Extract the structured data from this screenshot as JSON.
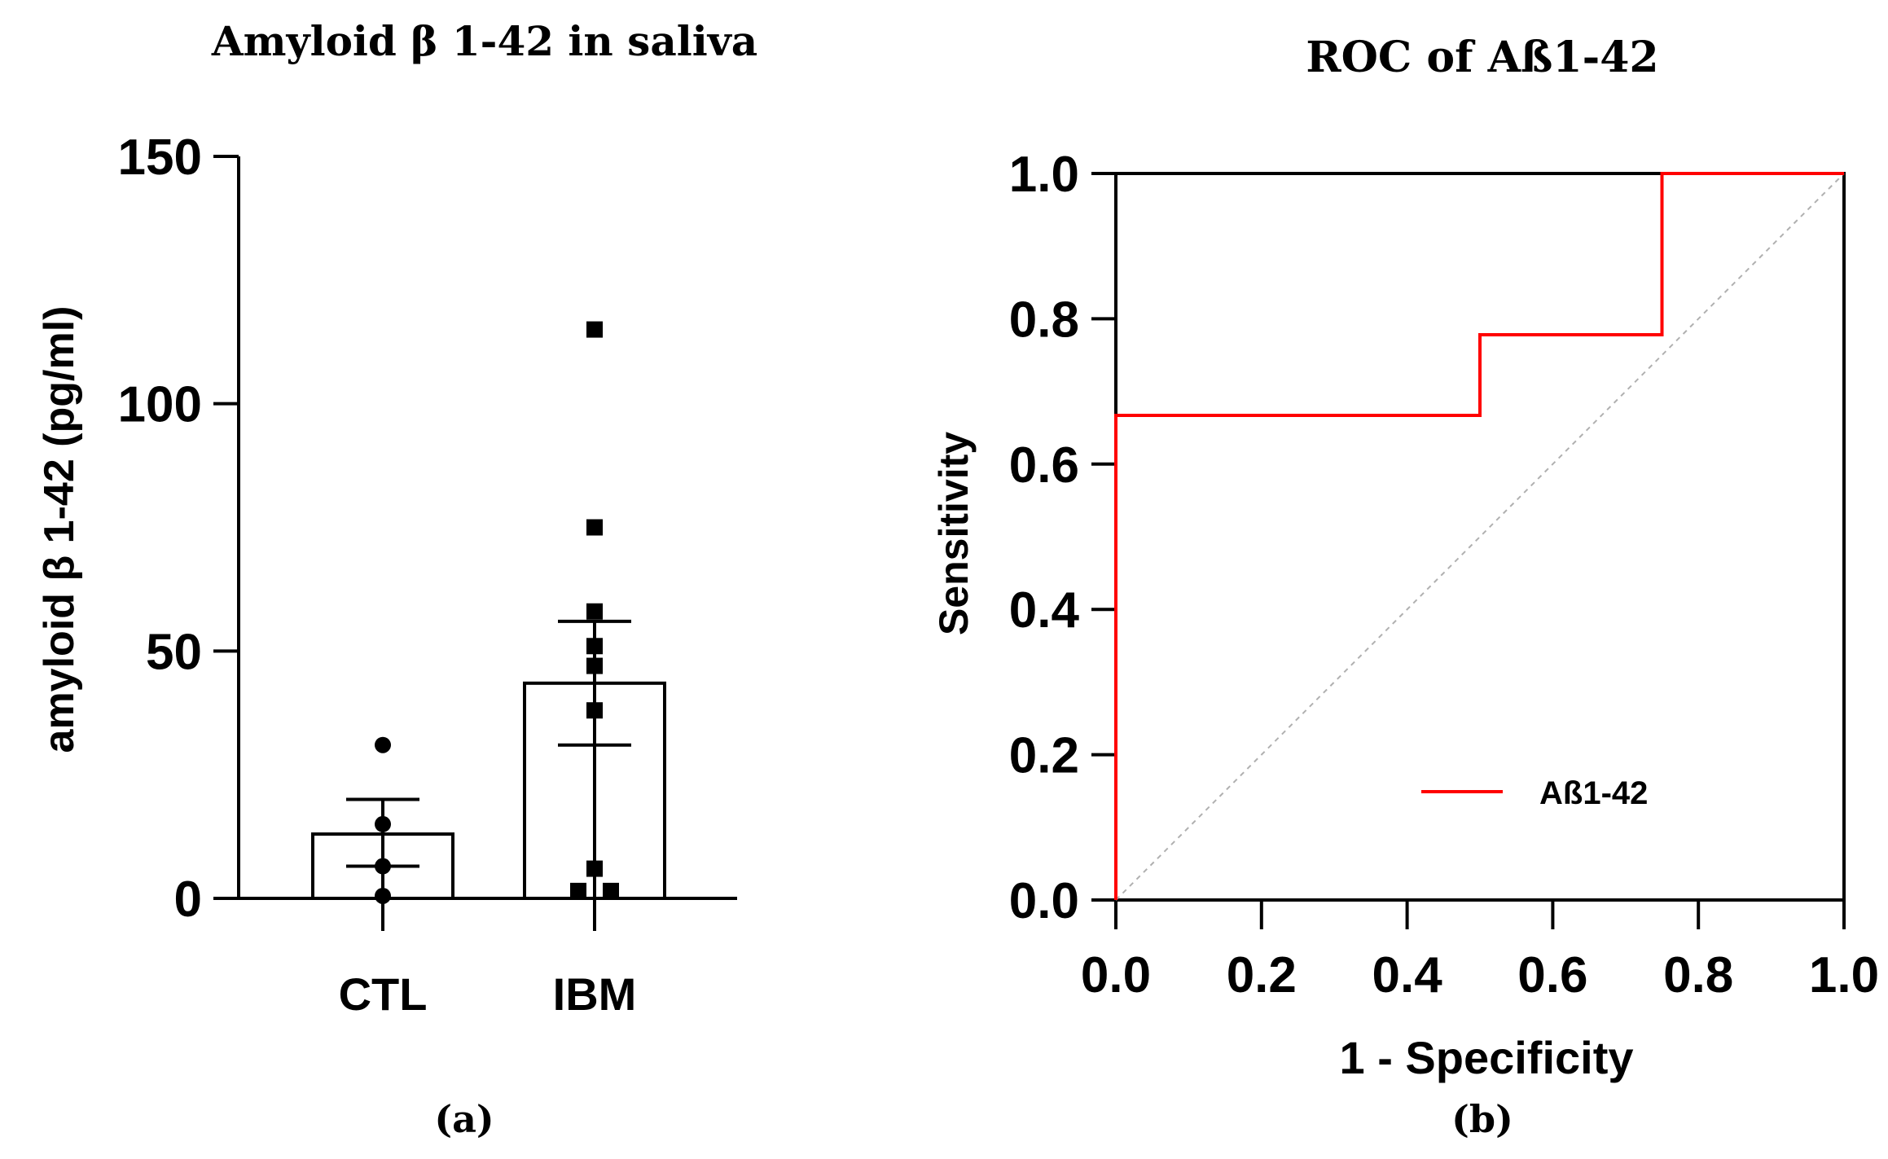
{
  "chart_data": [
    {
      "type": "bar",
      "panel_label": "(a)",
      "title": "Amyloid β 1-42 in saliva",
      "xlabel": "",
      "ylabel": "amyloid β 1-42 (pg/ml)",
      "ylim": [
        0,
        150
      ],
      "yticks": [
        0,
        50,
        100,
        150
      ],
      "ytick_labels": [
        "0",
        "50",
        "100",
        "150"
      ],
      "categories": [
        "CTL",
        "IBM"
      ],
      "values": [
        13,
        43.5
      ],
      "error": [
        [
          6.5,
          20
        ],
        [
          31,
          56
        ]
      ],
      "points": {
        "CTL": [
          31,
          15,
          6.5,
          0.5
        ],
        "IBM": [
          115,
          75,
          58,
          51,
          47,
          38,
          6,
          1.5,
          1.5
        ]
      }
    },
    {
      "type": "line",
      "panel_label": "(b)",
      "title": "ROC of Aß1-42",
      "xlabel": "1 - Specificity",
      "ylabel": "Sensitivity",
      "xlim": [
        0,
        1
      ],
      "ylim": [
        0,
        1
      ],
      "xticks": [
        0.0,
        0.2,
        0.4,
        0.6,
        0.8,
        1.0
      ],
      "yticks": [
        0.0,
        0.2,
        0.4,
        0.6,
        0.8,
        1.0
      ],
      "xtick_labels": [
        "0.0",
        "0.2",
        "0.4",
        "0.6",
        "0.8",
        "1.0"
      ],
      "ytick_labels": [
        "0.0",
        "0.2",
        "0.4",
        "0.6",
        "0.8",
        "1.0"
      ],
      "series": [
        {
          "name": "Aß1-42",
          "color": "#ff0000",
          "x": [
            0,
            0,
            0.5,
            0.5,
            0.75,
            0.75,
            1
          ],
          "y": [
            0,
            0.667,
            0.667,
            0.778,
            0.778,
            1,
            1
          ]
        }
      ],
      "reference_line": {
        "x": [
          0,
          1
        ],
        "y": [
          0,
          1
        ],
        "color": "#b0b0b0"
      },
      "legend": {
        "position": "bottom-right",
        "entries": [
          "Aß1-42"
        ]
      }
    }
  ]
}
